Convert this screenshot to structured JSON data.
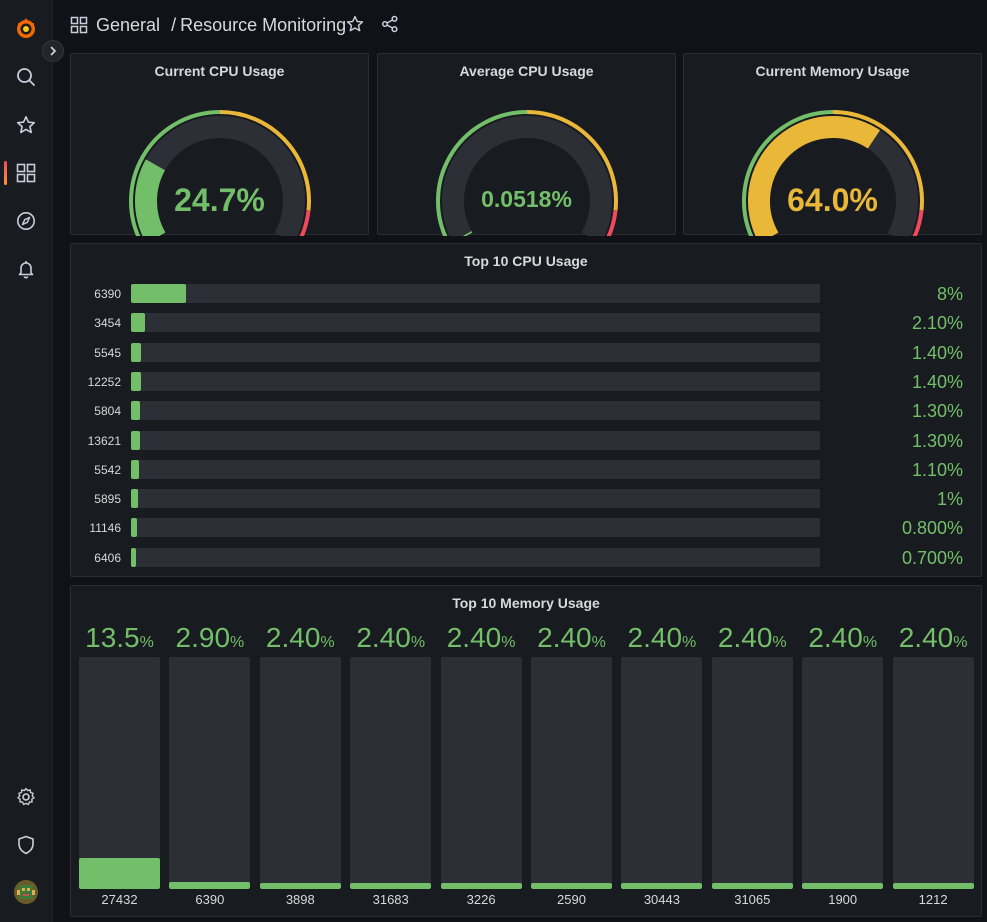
{
  "breadcrumb": {
    "folder": "General",
    "separator": "/",
    "dashboard": "Resource Monitoring"
  },
  "gauges": [
    {
      "title": "Current CPU Usage",
      "value_text": "24.7%",
      "value": 24.7,
      "color": "#73bf69"
    },
    {
      "title": "Average CPU Usage",
      "value_text": "0.0518%",
      "value": 0.0518,
      "color": "#73bf69"
    },
    {
      "title": "Current Memory Usage",
      "value_text": "64.0%",
      "value": 64.0,
      "color": "#eab839"
    }
  ],
  "cpu_panel": {
    "title": "Top 10 CPU Usage",
    "rows": [
      {
        "label": "6390",
        "value_text": "8%",
        "value": 8
      },
      {
        "label": "3454",
        "value_text": "2.10%",
        "value": 2.1
      },
      {
        "label": "5545",
        "value_text": "1.40%",
        "value": 1.4
      },
      {
        "label": "12252",
        "value_text": "1.40%",
        "value": 1.4
      },
      {
        "label": "5804",
        "value_text": "1.30%",
        "value": 1.3
      },
      {
        "label": "13621",
        "value_text": "1.30%",
        "value": 1.3
      },
      {
        "label": "5542",
        "value_text": "1.10%",
        "value": 1.1
      },
      {
        "label": "5895",
        "value_text": "1%",
        "value": 1
      },
      {
        "label": "11146",
        "value_text": "0.800%",
        "value": 0.8
      },
      {
        "label": "6406",
        "value_text": "0.700%",
        "value": 0.7
      }
    ]
  },
  "mem_panel": {
    "title": "Top 10 Memory Usage",
    "cols": [
      {
        "label": "27432",
        "num": "13.5",
        "unit": "%",
        "value": 13.5
      },
      {
        "label": "6390",
        "num": "2.90",
        "unit": "%",
        "value": 2.9
      },
      {
        "label": "3898",
        "num": "2.40",
        "unit": "%",
        "value": 2.4
      },
      {
        "label": "31683",
        "num": "2.40",
        "unit": "%",
        "value": 2.4
      },
      {
        "label": "3226",
        "num": "2.40",
        "unit": "%",
        "value": 2.4
      },
      {
        "label": "2590",
        "num": "2.40",
        "unit": "%",
        "value": 2.4
      },
      {
        "label": "30443",
        "num": "2.40",
        "unit": "%",
        "value": 2.4
      },
      {
        "label": "31065",
        "num": "2.40",
        "unit": "%",
        "value": 2.4
      },
      {
        "label": "1900",
        "num": "2.40",
        "unit": "%",
        "value": 2.4
      },
      {
        "label": "1212",
        "num": "2.40",
        "unit": "%",
        "value": 2.4
      }
    ]
  },
  "colors": {
    "green": "#73bf69",
    "yellow": "#eab839",
    "red": "#f2495c",
    "track": "#2c2f35"
  },
  "icons": [
    "grafana-logo-icon",
    "search-icon",
    "star-icon",
    "dashboards-icon",
    "explore-compass-icon",
    "alerting-bell-icon",
    "settings-gear-icon",
    "shield-icon",
    "avatar"
  ]
}
